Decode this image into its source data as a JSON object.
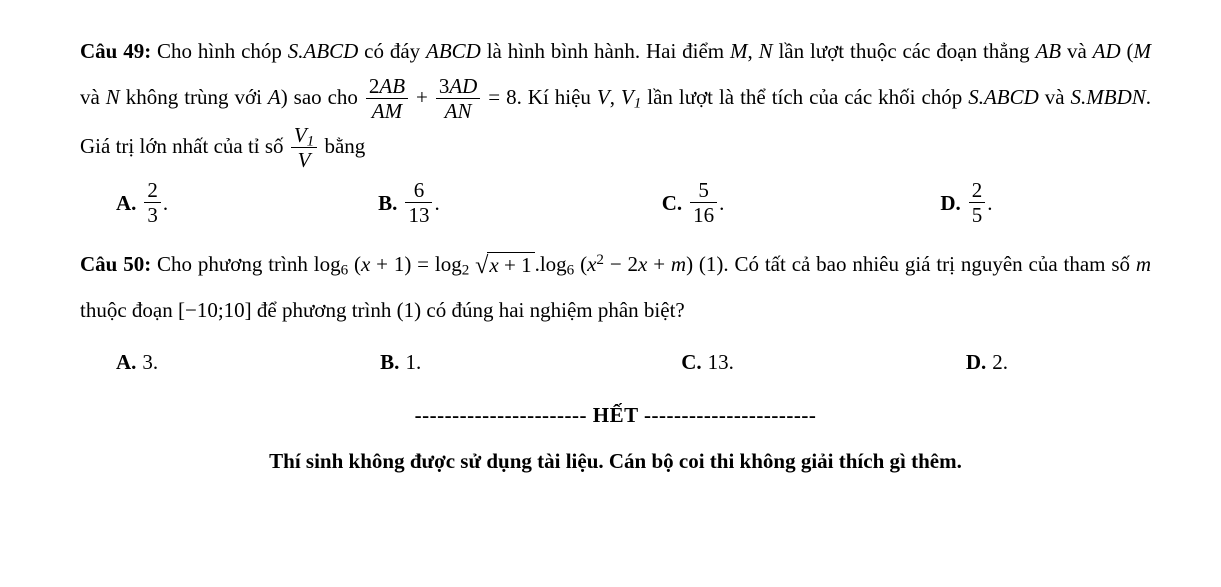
{
  "q49": {
    "label": "Câu 49:",
    "seg1_a": " Cho hình chóp ",
    "s_abcd": "S.ABCD",
    "seg1_b": " có đáy ",
    "abcd": "ABCD",
    "seg1_c": " là hình bình hành. Hai điểm ",
    "M": "M",
    "comma": ", ",
    "N": "N",
    "seg1_d": " lần lượt thuộc các đoạn thẳng ",
    "AB": "AB",
    "and": " và ",
    "AD": "AD",
    "paren_open": " (",
    "mnote": "M",
    "nnote": "N",
    "not_coincide": " không trùng với ",
    "A": "A",
    "paren_close": ") sao cho ",
    "frac1_num_coef": "2",
    "frac1_num_var": "AB",
    "frac1_den": "AM",
    "plus": " + ",
    "frac2_num_coef": "3",
    "frac2_num_var": "AD",
    "frac2_den": "AN",
    "eq8": " = 8",
    "after_eq": ". Kí hiệu ",
    "V": "V",
    "V1": "V",
    "V1sub": "1",
    "seg_vols": " lần lượt là thể tích của các khối chóp ",
    "and2": " và ",
    "smbdn": "S.MBDN",
    "seg_ratio_a": ". Giá trị lớn nhất của tỉ số ",
    "ratio_num": "V",
    "ratio_num_sub": "1",
    "ratio_den": "V",
    "seg_ratio_b": " bằng",
    "opts": {
      "A": {
        "lab": "A.",
        "num": "2",
        "den": "3",
        "dot": "."
      },
      "B": {
        "lab": "B.",
        "num": "6",
        "den": "13",
        "dot": "."
      },
      "C": {
        "lab": "C.",
        "num": "5",
        "den": "16",
        "dot": "."
      },
      "D": {
        "lab": "D.",
        "num": "2",
        "den": "5",
        "dot": "."
      }
    }
  },
  "q50": {
    "label": "Câu 50:",
    "seg1": " Cho phương trình ",
    "log6a": "log",
    "sub6": "6",
    "arg1_open": " (",
    "x": "x",
    "arg1_rest": " + 1) = ",
    "log2": "log",
    "sub2": "2",
    "sqrt_arg_var": "x",
    "sqrt_arg_rest": " + 1",
    "dot": ".",
    "log6b": "log",
    "arg2_open": " (",
    "xsq": "x",
    "sup2": "2",
    "arg2_rest": " − 2",
    "xagain": "x",
    "plus_m": " + ",
    "m": "m",
    "arg2_close": ")",
    "eqlabel": " (1). ",
    "seg2": " Có tất cả bao nhiêu giá trị nguyên của tham số ",
    "mital": "m",
    "seg3": " thuộc đoạn ",
    "interval": "[−10;10]",
    "seg4": " để phương trình ",
    "one_par": "(1)",
    "seg5": " có đúng hai nghiệm phân biệt?",
    "opts": {
      "A": {
        "lab": "A.",
        "val": "3."
      },
      "B": {
        "lab": "B.",
        "val": "1."
      },
      "C": {
        "lab": "C.",
        "val": "13."
      },
      "D": {
        "lab": "D.",
        "val": "2."
      }
    }
  },
  "end": {
    "dashes": "-----------------------",
    "het": " HẾT ",
    "note": "Thí sinh không được sử dụng tài liệu. Cán bộ coi thi không giải thích gì thêm."
  }
}
